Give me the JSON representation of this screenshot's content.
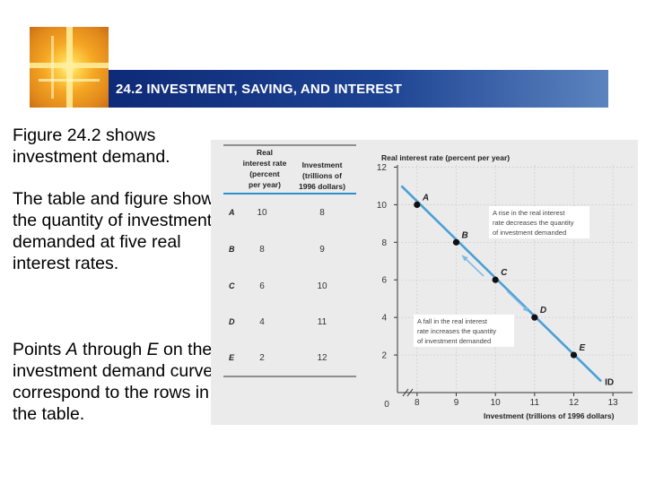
{
  "header": {
    "title": "24.2 INVESTMENT, SAVING, AND INTEREST",
    "logo": "orange-cross-logo"
  },
  "body": {
    "p1": "Figure 24.2 shows investment demand.",
    "p2": "The table and figure show the quantity of investment demanded at five real interest rates.",
    "p3_prefix": "Points ",
    "p3_a": "A",
    "p3_mid": " through ",
    "p3_e": "E",
    "p3_suffix": " on the investment demand curve correspond to the rows in the table."
  },
  "table": {
    "col1_header": [
      "Real",
      "interest rate",
      "(percent",
      "per year)"
    ],
    "col2_header": [
      "Investment",
      "(trillions of",
      "1996 dollars)"
    ],
    "rows": [
      {
        "label": "A",
        "rate": "10",
        "investment": "8"
      },
      {
        "label": "B",
        "rate": "8",
        "investment": "9"
      },
      {
        "label": "C",
        "rate": "6",
        "investment": "10"
      },
      {
        "label": "D",
        "rate": "4",
        "investment": "11"
      },
      {
        "label": "E",
        "rate": "2",
        "investment": "12"
      }
    ]
  },
  "chart_data": {
    "type": "line",
    "title": "",
    "ylabel": "Real interest rate (percent per year)",
    "xlabel": "Investment (trillions of 1996 dollars)",
    "x_ticks": [
      "8",
      "9",
      "10",
      "11",
      "12",
      "13"
    ],
    "y_ticks": [
      "2",
      "4",
      "6",
      "8",
      "10",
      "12"
    ],
    "origin_label": "0",
    "xlim": [
      7.5,
      13.5
    ],
    "ylim": [
      0,
      12.5
    ],
    "x_axis_break": true,
    "curve_label": "ID",
    "curve_color": "#4a9fd5",
    "points": [
      {
        "name": "A",
        "x": 8,
        "y": 10
      },
      {
        "name": "B",
        "x": 9,
        "y": 8
      },
      {
        "name": "C",
        "x": 10,
        "y": 6
      },
      {
        "name": "D",
        "x": 11,
        "y": 4
      },
      {
        "name": "E",
        "x": 12,
        "y": 2
      }
    ],
    "curve_start": {
      "x": 7.6,
      "y": 11.0
    },
    "curve_end": {
      "x": 12.7,
      "y": 0.6
    },
    "annotations": [
      {
        "lines": [
          "A rise in the real interest",
          "rate decreases the quantity",
          "of investment demanded"
        ],
        "arrow": "up-left"
      },
      {
        "lines": [
          "A fall in the real interest",
          "rate increases the quantity",
          "of investment demanded"
        ],
        "arrow": "down-right"
      }
    ]
  }
}
